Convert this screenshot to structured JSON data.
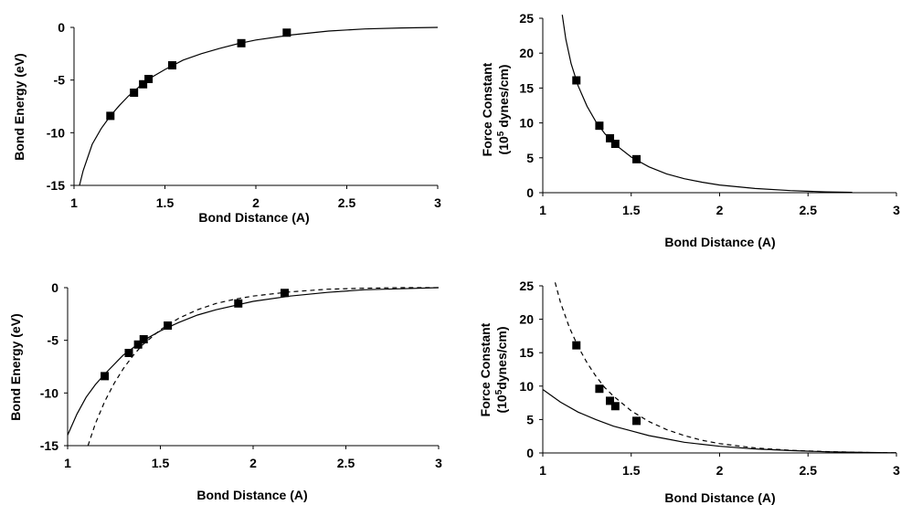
{
  "chart_data": [
    {
      "type": "scatter",
      "title": "",
      "xlabel": "Bond Distance (A)",
      "ylabel": "Bond Energy (eV)",
      "xlim": [
        1,
        3
      ],
      "ylim": [
        -15,
        0
      ],
      "xticks": [
        1,
        1.5,
        2,
        2.5,
        3
      ],
      "yticks": [
        0,
        -5,
        -10,
        -15
      ],
      "xtick_labels": [
        "1",
        "1.5",
        "2",
        "2.5",
        "3"
      ],
      "ytick_labels": [
        "0",
        "-5",
        "-10",
        "-15"
      ],
      "grid": false,
      "legend": "none",
      "points": [
        {
          "x": 1.2,
          "y": -8.4
        },
        {
          "x": 1.33,
          "y": -6.2
        },
        {
          "x": 1.38,
          "y": -5.4
        },
        {
          "x": 1.41,
          "y": -4.9
        },
        {
          "x": 1.54,
          "y": -3.6
        },
        {
          "x": 1.92,
          "y": -1.5
        },
        {
          "x": 2.17,
          "y": -0.5
        }
      ],
      "curves": [
        {
          "style": "solid",
          "x": [
            1.03,
            1.05,
            1.1,
            1.15,
            1.2,
            1.25,
            1.3,
            1.4,
            1.5,
            1.6,
            1.7,
            1.8,
            1.9,
            2.0,
            2.2,
            2.4,
            2.6,
            2.8,
            3.0
          ],
          "y": [
            -15.0,
            -13.6,
            -11.1,
            -9.6,
            -8.4,
            -7.4,
            -6.5,
            -5.0,
            -4.0,
            -3.1,
            -2.5,
            -2.0,
            -1.55,
            -1.2,
            -0.7,
            -0.35,
            -0.15,
            -0.05,
            0
          ]
        }
      ]
    },
    {
      "type": "scatter",
      "title": "",
      "xlabel": "Bond Distance (A)",
      "ylabel_line1": "Force Constant",
      "ylabel_line2_pre": "(10",
      "ylabel_line2_sup": "5",
      "ylabel_line2_post": " dynes/cm)",
      "xlim": [
        1,
        3
      ],
      "ylim": [
        0,
        25
      ],
      "xticks": [
        1,
        1.5,
        2,
        2.5,
        3
      ],
      "yticks": [
        0,
        5,
        10,
        15,
        20,
        25
      ],
      "xtick_labels": [
        "1",
        "1.5",
        "2",
        "2.5",
        "3"
      ],
      "ytick_labels": [
        "0",
        "5",
        "10",
        "15",
        "20",
        "25"
      ],
      "grid": false,
      "legend": "none",
      "points": [
        {
          "x": 1.19,
          "y": 16.1
        },
        {
          "x": 1.32,
          "y": 9.6
        },
        {
          "x": 1.38,
          "y": 7.8
        },
        {
          "x": 1.41,
          "y": 7.0
        },
        {
          "x": 1.53,
          "y": 4.8
        }
      ],
      "curves": [
        {
          "style": "solid",
          "x": [
            1.11,
            1.13,
            1.16,
            1.2,
            1.25,
            1.3,
            1.35,
            1.4,
            1.5,
            1.6,
            1.7,
            1.8,
            1.9,
            2.0,
            2.2,
            2.4,
            2.6,
            2.75
          ],
          "y": [
            25.5,
            22.0,
            18.5,
            15.3,
            12.4,
            10.2,
            8.5,
            7.1,
            5.1,
            3.7,
            2.7,
            2.0,
            1.5,
            1.1,
            0.6,
            0.3,
            0.12,
            0.05
          ]
        }
      ]
    },
    {
      "type": "scatter",
      "title": "",
      "xlabel": "Bond Distance (A)",
      "ylabel": "Bond Energy (eV)",
      "xlim": [
        1,
        3
      ],
      "ylim": [
        -15,
        0
      ],
      "xticks": [
        1,
        1.5,
        2,
        2.5,
        3
      ],
      "yticks": [
        0,
        -5,
        -10,
        -15
      ],
      "xtick_labels": [
        "1",
        "1.5",
        "2",
        "2.5",
        "3"
      ],
      "ytick_labels": [
        "0",
        "-5",
        "-10",
        "-15"
      ],
      "grid": false,
      "legend": "none",
      "points": [
        {
          "x": 1.2,
          "y": -8.4
        },
        {
          "x": 1.33,
          "y": -6.2
        },
        {
          "x": 1.38,
          "y": -5.4
        },
        {
          "x": 1.41,
          "y": -4.9
        },
        {
          "x": 1.54,
          "y": -3.6
        },
        {
          "x": 1.92,
          "y": -1.5
        },
        {
          "x": 2.17,
          "y": -0.5
        }
      ],
      "curves": [
        {
          "style": "solid",
          "x": [
            1.0,
            1.05,
            1.1,
            1.15,
            1.2,
            1.3,
            1.4,
            1.5,
            1.6,
            1.7,
            1.8,
            1.9,
            2.0,
            2.2,
            2.4,
            2.6,
            2.8,
            3.0
          ],
          "y": [
            -14.0,
            -12.0,
            -10.4,
            -9.2,
            -8.2,
            -6.4,
            -5.1,
            -4.1,
            -3.3,
            -2.6,
            -2.1,
            -1.7,
            -1.3,
            -0.8,
            -0.45,
            -0.2,
            -0.1,
            0
          ]
        },
        {
          "style": "dashed",
          "x": [
            1.11,
            1.15,
            1.2,
            1.25,
            1.3,
            1.35,
            1.4,
            1.5,
            1.6,
            1.7,
            1.8,
            1.9,
            2.0,
            2.2,
            2.4,
            2.6,
            2.8,
            3.0
          ],
          "y": [
            -15.0,
            -12.9,
            -10.8,
            -9.1,
            -7.7,
            -6.5,
            -5.5,
            -4.0,
            -2.9,
            -2.1,
            -1.5,
            -1.1,
            -0.8,
            -0.4,
            -0.15,
            -0.05,
            0,
            0
          ]
        }
      ]
    },
    {
      "type": "scatter",
      "title": "",
      "xlabel": "Bond Distance (A)",
      "ylabel_line1": "Force Constant",
      "ylabel_line2_pre": "(10",
      "ylabel_line2_sup": "5",
      "ylabel_line2_post": "dynes/cm)",
      "xlim": [
        1,
        3
      ],
      "ylim": [
        0,
        25
      ],
      "xticks": [
        1,
        1.5,
        2,
        2.5,
        3
      ],
      "yticks": [
        0,
        5,
        10,
        15,
        20,
        25
      ],
      "xtick_labels": [
        "1",
        "1.5",
        "2",
        "2.5",
        "3"
      ],
      "ytick_labels": [
        "0",
        "5",
        "10",
        "15",
        "20",
        "25"
      ],
      "grid": false,
      "legend": "none",
      "points": [
        {
          "x": 1.19,
          "y": 16.1
        },
        {
          "x": 1.32,
          "y": 9.6
        },
        {
          "x": 1.38,
          "y": 7.8
        },
        {
          "x": 1.41,
          "y": 7.0
        },
        {
          "x": 1.53,
          "y": 4.8
        }
      ],
      "curves": [
        {
          "style": "solid",
          "x": [
            1.0,
            1.1,
            1.2,
            1.3,
            1.4,
            1.5,
            1.6,
            1.7,
            1.8,
            1.9,
            2.0,
            2.2,
            2.4,
            2.6,
            2.8,
            3.0
          ],
          "y": [
            9.5,
            7.6,
            6.1,
            5.0,
            4.0,
            3.3,
            2.6,
            2.1,
            1.6,
            1.3,
            1.0,
            0.6,
            0.35,
            0.18,
            0.08,
            0.03
          ]
        },
        {
          "style": "dashed",
          "x": [
            1.07,
            1.1,
            1.15,
            1.2,
            1.25,
            1.3,
            1.35,
            1.4,
            1.5,
            1.6,
            1.7,
            1.8,
            1.9,
            2.0,
            2.2,
            2.4,
            2.6,
            2.8,
            3.0
          ],
          "y": [
            25.5,
            22.5,
            18.8,
            15.9,
            13.5,
            11.5,
            9.8,
            8.5,
            6.3,
            4.7,
            3.5,
            2.6,
            1.9,
            1.4,
            0.75,
            0.4,
            0.2,
            0.08,
            0.02
          ]
        }
      ]
    }
  ]
}
